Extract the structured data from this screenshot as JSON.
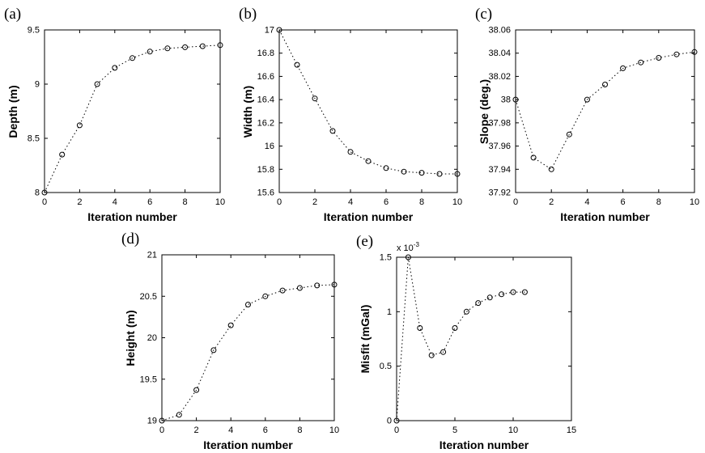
{
  "page": {
    "background": "#ffffff"
  },
  "style": {
    "line_color": "#000000",
    "axis_color": "#000000",
    "marker": "circle",
    "line_style": "dotted"
  },
  "chart_data": [
    {
      "type": "line",
      "panel_label": "(a)",
      "title": "",
      "xlabel": "Iteration number",
      "ylabel": "Depth (m)",
      "xlim": [
        0,
        10
      ],
      "ylim": [
        8,
        9.5
      ],
      "grid": false,
      "legend": "none",
      "xticks": [
        0,
        2,
        4,
        6,
        8,
        10
      ],
      "xtick_labels": [
        "0",
        "2",
        "4",
        "6",
        "8",
        "10"
      ],
      "yticks": [
        8,
        8.5,
        9,
        9.5
      ],
      "ytick_labels": [
        "8",
        "8.5",
        "9",
        "9.5"
      ],
      "x": [
        0,
        1,
        2,
        3,
        4,
        5,
        6,
        7,
        8,
        9,
        10
      ],
      "y": [
        8.0,
        8.35,
        8.62,
        9.0,
        9.15,
        9.24,
        9.3,
        9.33,
        9.34,
        9.35,
        9.36
      ]
    },
    {
      "type": "line",
      "panel_label": "(b)",
      "title": "",
      "xlabel": "Iteration number",
      "ylabel": "Width (m)",
      "xlim": [
        0,
        10
      ],
      "ylim": [
        15.6,
        17
      ],
      "grid": false,
      "legend": "none",
      "xticks": [
        0,
        2,
        4,
        6,
        8,
        10
      ],
      "xtick_labels": [
        "0",
        "2",
        "4",
        "6",
        "8",
        "10"
      ],
      "yticks": [
        15.6,
        15.8,
        16,
        16.2,
        16.4,
        16.6,
        16.8,
        17
      ],
      "ytick_labels": [
        "15.6",
        "15.8",
        "16",
        "16.2",
        "16.4",
        "16.6",
        "16.8",
        "17"
      ],
      "x": [
        0,
        1,
        2,
        3,
        4,
        5,
        6,
        7,
        8,
        9,
        10
      ],
      "y": [
        17.0,
        16.7,
        16.41,
        16.13,
        15.95,
        15.87,
        15.81,
        15.78,
        15.77,
        15.76,
        15.76
      ]
    },
    {
      "type": "line",
      "panel_label": "(c)",
      "title": "",
      "xlabel": "Iteration number",
      "ylabel": "Slope (deg.)",
      "xlim": [
        0,
        10
      ],
      "ylim": [
        37.92,
        38.06
      ],
      "grid": false,
      "legend": "none",
      "xticks": [
        0,
        2,
        4,
        6,
        8,
        10
      ],
      "xtick_labels": [
        "0",
        "2",
        "4",
        "6",
        "8",
        "10"
      ],
      "yticks": [
        37.92,
        37.94,
        37.96,
        37.98,
        38,
        38.02,
        38.04,
        38.06
      ],
      "ytick_labels": [
        "37.92",
        "37.94",
        "37.96",
        "37.98",
        "38",
        "38.02",
        "38.04",
        "38.06"
      ],
      "x": [
        0,
        1,
        2,
        3,
        4,
        5,
        6,
        7,
        8,
        9,
        10
      ],
      "y": [
        38.0,
        37.95,
        37.94,
        37.97,
        38.0,
        38.013,
        38.027,
        38.032,
        38.036,
        38.039,
        38.041
      ]
    },
    {
      "type": "line",
      "panel_label": "(d)",
      "title": "",
      "xlabel": "Iteration number",
      "ylabel": "Height (m)",
      "xlim": [
        0,
        10
      ],
      "ylim": [
        19,
        21
      ],
      "grid": false,
      "legend": "none",
      "xticks": [
        0,
        2,
        4,
        6,
        8,
        10
      ],
      "xtick_labels": [
        "0",
        "2",
        "4",
        "6",
        "8",
        "10"
      ],
      "yticks": [
        19,
        19.5,
        20,
        20.5,
        21
      ],
      "ytick_labels": [
        "19",
        "19.5",
        "20",
        "20.5",
        "21"
      ],
      "x": [
        0,
        1,
        2,
        3,
        4,
        5,
        6,
        7,
        8,
        9,
        10
      ],
      "y": [
        19.0,
        19.07,
        19.37,
        19.85,
        20.15,
        20.4,
        20.5,
        20.57,
        20.6,
        20.63,
        20.64
      ]
    },
    {
      "type": "line",
      "panel_label": "(e)",
      "title": "",
      "xlabel": "Iteration number",
      "ylabel": "Misfit (mGal)",
      "y_scale_label": {
        "base": "x 10",
        "exponent": "-3"
      },
      "xlim": [
        0,
        15
      ],
      "ylim": [
        0,
        1.5
      ],
      "grid": false,
      "legend": "none",
      "xticks": [
        0,
        5,
        10,
        15
      ],
      "xtick_labels": [
        "0",
        "5",
        "10",
        "15"
      ],
      "yticks": [
        0,
        0.5,
        1,
        1.5
      ],
      "ytick_labels": [
        "0",
        "0.5",
        "1",
        "1.5"
      ],
      "x": [
        0,
        1,
        2,
        3,
        4,
        5,
        6,
        7,
        8,
        9,
        10,
        11
      ],
      "y": [
        0,
        1.5,
        0.85,
        0.6,
        0.63,
        0.85,
        1.0,
        1.08,
        1.13,
        1.16,
        1.18,
        1.18
      ]
    }
  ]
}
